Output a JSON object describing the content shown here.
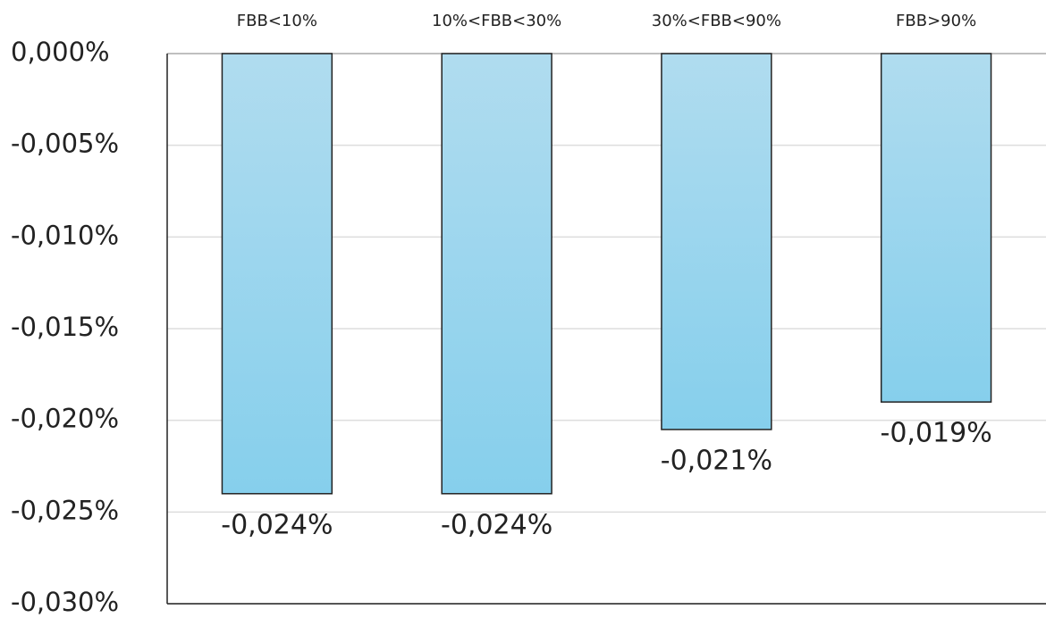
{
  "chart_data": {
    "type": "bar",
    "categories": [
      "FBB<10%",
      "10%<FBB<30%",
      "30%<FBB<90%",
      "FBB>90%"
    ],
    "values": [
      -0.024,
      -0.024,
      -0.0205,
      -0.019
    ],
    "value_labels": [
      "-0,024%",
      "-0,024%",
      "-0,021%",
      "-0,019%"
    ],
    "color": "#9bd5ee",
    "ylim": [
      -0.03,
      0
    ],
    "yticks": [
      {
        "value": 0,
        "label": "0,000%"
      },
      {
        "value": -0.005,
        "label": "-0,005%"
      },
      {
        "value": -0.01,
        "label": "-0,010%"
      },
      {
        "value": -0.015,
        "label": "-0,015%"
      },
      {
        "value": -0.02,
        "label": "-0,020%"
      },
      {
        "value": -0.025,
        "label": "-0,025%"
      },
      {
        "value": -0.03,
        "label": "-0,030%"
      }
    ],
    "grid": true
  }
}
